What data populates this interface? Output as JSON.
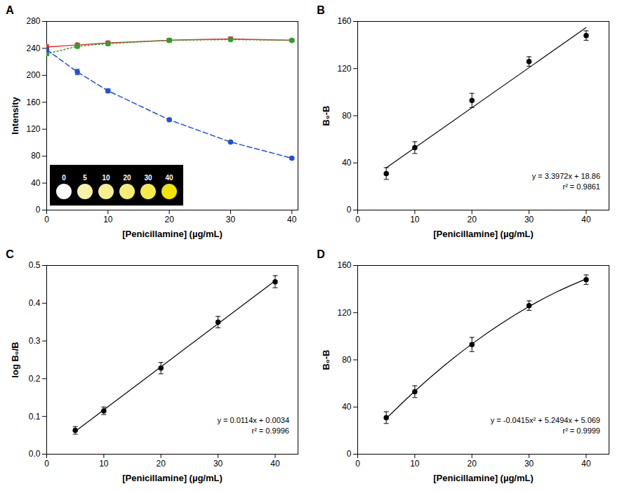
{
  "chart_data": [
    {
      "type": "line",
      "title": "A",
      "x_label": "[Penicillamine] (µg/mL)",
      "y_label": "Intensity",
      "x": [
        0,
        5,
        10,
        20,
        30,
        40
      ],
      "xlim": [
        0,
        41
      ],
      "xticks": [
        0,
        10,
        20,
        30,
        40
      ],
      "ylim": [
        0,
        280
      ],
      "yticks": [
        0,
        40,
        80,
        120,
        160,
        200,
        240,
        280
      ],
      "series": [
        {
          "color": "#e03030",
          "marker": "circle",
          "line_style": "solid",
          "values": [
            242,
            245,
            248,
            252,
            254,
            252
          ],
          "errors": [
            4,
            3,
            3,
            3,
            3,
            2
          ]
        },
        {
          "color": "#2ca02c",
          "marker": "circle",
          "line_style": "dotted",
          "values": [
            232,
            243,
            247,
            252,
            253,
            252
          ],
          "errors": [
            3,
            3,
            3,
            2,
            2,
            2
          ]
        },
        {
          "color": "#2150d8",
          "marker": "circle",
          "line_style": "dashed",
          "values": [
            238,
            205,
            177,
            134,
            101,
            77
          ],
          "errors": [
            3,
            4,
            3,
            2,
            2,
            2
          ]
        }
      ],
      "inset": {
        "labels": [
          0,
          5,
          10,
          20,
          30,
          40
        ],
        "colors": [
          "#ffffff",
          "#f7f2a8",
          "#f5ef90",
          "#f4ec74",
          "#f3ea4c",
          "#f0e400"
        ]
      }
    },
    {
      "type": "scatter",
      "title": "B",
      "x_label": "[Penicillamine] (µg/mL)",
      "y_label": "B₀-B",
      "x": [
        5,
        10,
        20,
        30,
        40
      ],
      "values": [
        31,
        53,
        93,
        126,
        148
      ],
      "errors": [
        5,
        5,
        6,
        4,
        4
      ],
      "color": "#000000",
      "marker": "circle",
      "xlim": [
        0,
        44
      ],
      "xticks": [
        0,
        10,
        20,
        30,
        40
      ],
      "ylim": [
        0,
        160
      ],
      "yticks": [
        0,
        40,
        80,
        120,
        160
      ],
      "fit": {
        "x": [
          5,
          40
        ],
        "y": [
          35.85,
          154.75
        ]
      },
      "equation": "y = 3.3972x + 18.86",
      "r2": "r² = 0.9861"
    },
    {
      "type": "scatter",
      "title": "C",
      "x_label": "[Penicillamine] (µg/mL)",
      "y_label": "log B₀/B",
      "x": [
        5,
        10,
        20,
        30,
        40
      ],
      "values": [
        0.063,
        0.115,
        0.228,
        0.35,
        0.457
      ],
      "errors": [
        0.01,
        0.01,
        0.015,
        0.015,
        0.016
      ],
      "color": "#000000",
      "marker": "circle",
      "xlim": [
        0,
        44
      ],
      "xticks": [
        0,
        10,
        20,
        30,
        40
      ],
      "ylim": [
        0,
        0.5
      ],
      "yticks": [
        {
          "value": 0,
          "label": "0.0"
        },
        0.1,
        0.2,
        0.3,
        0.4,
        0.5
      ],
      "fit": {
        "x": [
          5,
          40
        ],
        "y": [
          0.0604,
          0.4594
        ]
      },
      "equation": "y = 0.0114x + 0.0034",
      "r2": "r² = 0.9996"
    },
    {
      "type": "scatter",
      "title": "D",
      "x_label": "[Penicillamine] (µg/mL)",
      "y_label": "B₀-B",
      "x": [
        5,
        10,
        20,
        30,
        40
      ],
      "values": [
        31,
        53,
        93,
        126,
        148
      ],
      "errors": [
        5,
        5,
        6,
        4,
        4
      ],
      "color": "#000000",
      "marker": "circle",
      "xlim": [
        0,
        44
      ],
      "xticks": [
        0,
        10,
        20,
        30,
        40
      ],
      "ylim": [
        0,
        160
      ],
      "yticks": [
        0,
        40,
        80,
        120,
        160
      ],
      "fit": {
        "x": [
          5,
          10,
          15,
          20,
          25,
          30,
          35,
          40
        ],
        "y": [
          30.28,
          53.41,
          74.47,
          93.46,
          110.37,
          125.2,
          137.96,
          148.65
        ]
      },
      "equation": "y = -0.0415x² + 5.2494x + 5.069",
      "r2": "r² = 0.9999"
    }
  ]
}
